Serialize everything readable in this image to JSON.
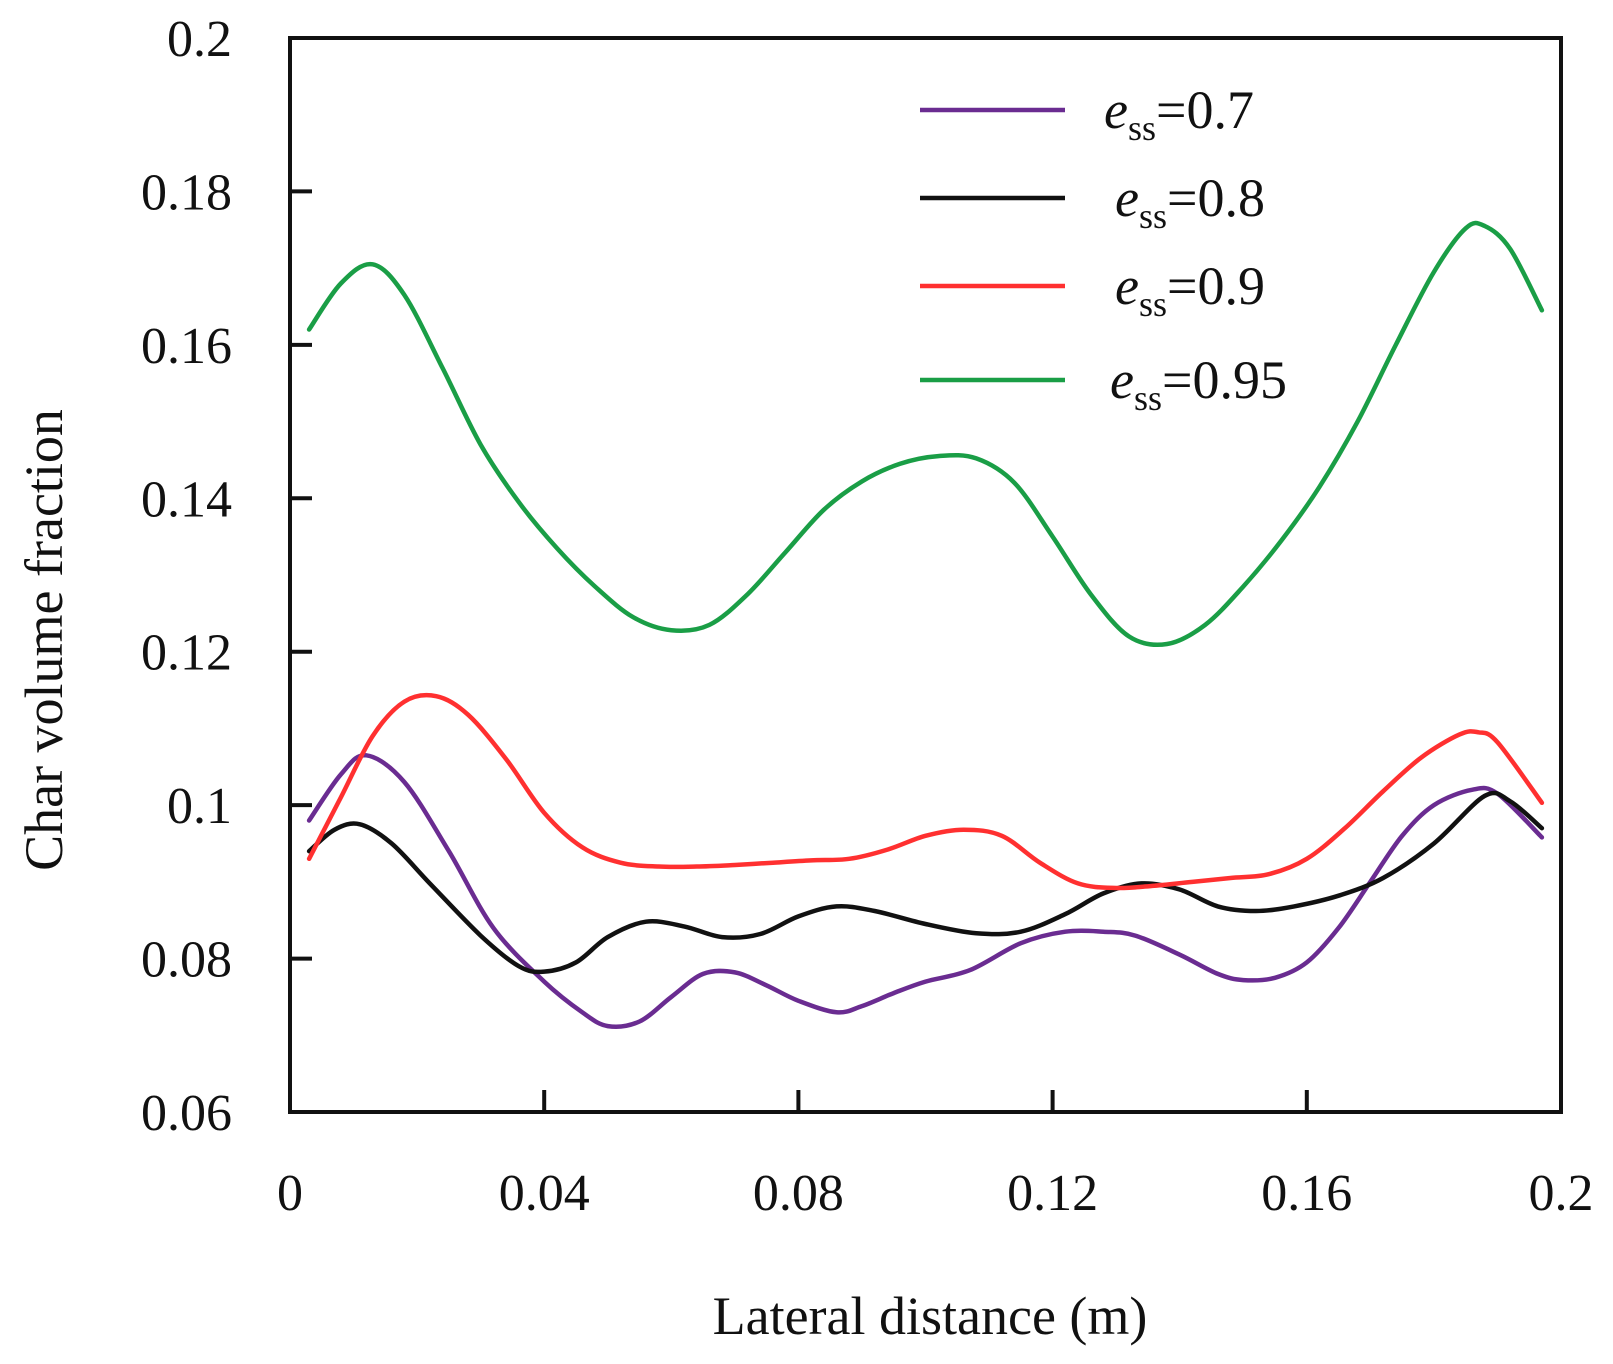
{
  "chart_data": {
    "type": "line",
    "title": "",
    "xlabel": "Lateral distance (m)",
    "ylabel": "Char volume fraction",
    "xlim": [
      0,
      0.2
    ],
    "ylim": [
      0.06,
      0.2
    ],
    "xticks": [
      "0",
      "0.04",
      "0.08",
      "0.12",
      "0.16",
      "0.2"
    ],
    "yticks": [
      "0.06",
      "0.08",
      "0.1",
      "0.12",
      "0.14",
      "0.16",
      "0.18",
      "0.2"
    ],
    "xtick_values": [
      0,
      0.04,
      0.08,
      0.12,
      0.16,
      0.2
    ],
    "ytick_values": [
      0.06,
      0.08,
      0.1,
      0.12,
      0.14,
      0.16,
      0.18,
      0.2
    ],
    "grid": false,
    "legend_position": "top-right",
    "series": [
      {
        "name": "ess=0.7",
        "legend_main": "e",
        "legend_sub": "ss",
        "legend_value": "=0.7",
        "color": "#6a2c91",
        "x": [
          0.003,
          0.008,
          0.012,
          0.018,
          0.025,
          0.032,
          0.04,
          0.046,
          0.05,
          0.055,
          0.06,
          0.065,
          0.07,
          0.075,
          0.08,
          0.086,
          0.09,
          0.095,
          0.1,
          0.107,
          0.115,
          0.122,
          0.128,
          0.133,
          0.14,
          0.146,
          0.15,
          0.155,
          0.16,
          0.165,
          0.17,
          0.175,
          0.18,
          0.186,
          0.19,
          0.197
        ],
        "y": [
          0.098,
          0.104,
          0.1065,
          0.103,
          0.094,
          0.084,
          0.077,
          0.073,
          0.0712,
          0.0718,
          0.075,
          0.078,
          0.0782,
          0.0765,
          0.0745,
          0.073,
          0.0738,
          0.0755,
          0.077,
          0.0785,
          0.082,
          0.0835,
          0.0835,
          0.083,
          0.0805,
          0.078,
          0.0772,
          0.0775,
          0.0795,
          0.084,
          0.09,
          0.096,
          0.1,
          0.102,
          0.1015,
          0.0958
        ]
      },
      {
        "name": "ess=0.8",
        "legend_main": "e",
        "legend_sub": "ss",
        "legend_value": "=0.8",
        "color": "#111111",
        "x": [
          0.003,
          0.007,
          0.011,
          0.016,
          0.022,
          0.03,
          0.036,
          0.04,
          0.045,
          0.05,
          0.056,
          0.062,
          0.068,
          0.074,
          0.08,
          0.086,
          0.092,
          0.1,
          0.108,
          0.115,
          0.122,
          0.128,
          0.134,
          0.14,
          0.146,
          0.152,
          0.158,
          0.165,
          0.172,
          0.18,
          0.188,
          0.192,
          0.197
        ],
        "y": [
          0.094,
          0.0968,
          0.0975,
          0.095,
          0.0898,
          0.083,
          0.079,
          0.0783,
          0.0795,
          0.0828,
          0.0848,
          0.0842,
          0.0828,
          0.0832,
          0.0855,
          0.0868,
          0.0862,
          0.0845,
          0.0833,
          0.0835,
          0.0858,
          0.0885,
          0.0898,
          0.089,
          0.0868,
          0.0862,
          0.0868,
          0.0882,
          0.0905,
          0.095,
          0.1012,
          0.1005,
          0.097
        ]
      },
      {
        "name": "ess=0.9",
        "legend_main": "e",
        "legend_sub": "ss",
        "legend_value": "=0.9",
        "color": "#ff3030",
        "x": [
          0.003,
          0.008,
          0.013,
          0.018,
          0.023,
          0.028,
          0.034,
          0.04,
          0.046,
          0.052,
          0.058,
          0.064,
          0.07,
          0.076,
          0.082,
          0.088,
          0.094,
          0.1,
          0.106,
          0.112,
          0.118,
          0.124,
          0.13,
          0.136,
          0.142,
          0.148,
          0.154,
          0.16,
          0.166,
          0.172,
          0.178,
          0.184,
          0.187,
          0.19,
          0.197
        ],
        "y": [
          0.093,
          0.101,
          0.109,
          0.1135,
          0.1142,
          0.1118,
          0.106,
          0.099,
          0.0945,
          0.0925,
          0.092,
          0.092,
          0.0922,
          0.0925,
          0.0928,
          0.093,
          0.0942,
          0.096,
          0.0968,
          0.096,
          0.0925,
          0.0898,
          0.0892,
          0.0895,
          0.09,
          0.0905,
          0.091,
          0.093,
          0.097,
          0.1018,
          0.1062,
          0.1092,
          0.1095,
          0.1082,
          0.1003
        ]
      },
      {
        "name": "ess=0.95",
        "legend_main": "e",
        "legend_sub": "ss",
        "legend_value": "=0.95",
        "color": "#1a9e46",
        "x": [
          0.003,
          0.008,
          0.013,
          0.018,
          0.024,
          0.03,
          0.036,
          0.042,
          0.048,
          0.054,
          0.06,
          0.066,
          0.072,
          0.078,
          0.084,
          0.09,
          0.096,
          0.102,
          0.108,
          0.114,
          0.12,
          0.126,
          0.132,
          0.138,
          0.144,
          0.15,
          0.156,
          0.162,
          0.168,
          0.174,
          0.18,
          0.185,
          0.188,
          0.192,
          0.197
        ],
        "y": [
          0.162,
          0.168,
          0.1705,
          0.1665,
          0.157,
          0.147,
          0.1395,
          0.1335,
          0.1285,
          0.1245,
          0.1228,
          0.1235,
          0.1275,
          0.133,
          0.1385,
          0.1422,
          0.1445,
          0.1455,
          0.1452,
          0.142,
          0.135,
          0.1275,
          0.122,
          0.121,
          0.1235,
          0.1285,
          0.1345,
          0.1415,
          0.15,
          0.16,
          0.1695,
          0.1752,
          0.1755,
          0.1725,
          0.1645
        ]
      }
    ]
  }
}
